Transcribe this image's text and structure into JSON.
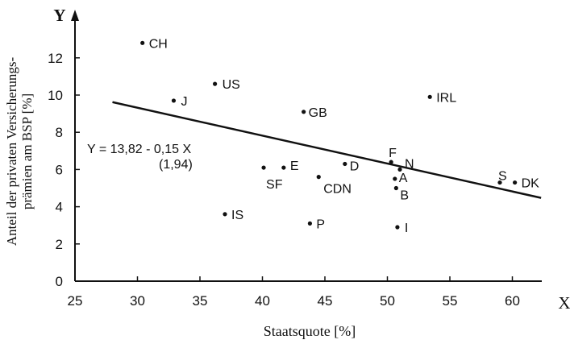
{
  "chart_data": {
    "type": "scatter",
    "xlabel": "Staatsquote [%]",
    "ylabel_lines": [
      "Anteil der privaten Versicherungs-",
      "prämien am BSP [%]"
    ],
    "x_axis_letter": "X",
    "y_axis_letter": "Y",
    "xlim": [
      25,
      63
    ],
    "ylim": [
      0,
      14.2
    ],
    "x_ticks": [
      25,
      30,
      35,
      40,
      45,
      50,
      55,
      60
    ],
    "y_ticks": [
      0,
      2,
      4,
      6,
      8,
      10,
      12
    ],
    "grid": false,
    "points": [
      {
        "label": "CH",
        "x": 30.4,
        "y": 12.8
      },
      {
        "label": "J",
        "x": 32.9,
        "y": 9.7
      },
      {
        "label": "US",
        "x": 36.2,
        "y": 10.6
      },
      {
        "label": "GB",
        "x": 43.3,
        "y": 9.1
      },
      {
        "label": "IRL",
        "x": 53.4,
        "y": 9.9
      },
      {
        "label": "SF",
        "x": 40.1,
        "y": 6.1
      },
      {
        "label": "E",
        "x": 41.7,
        "y": 6.1
      },
      {
        "label": "CDN",
        "x": 44.5,
        "y": 5.6
      },
      {
        "label": "D",
        "x": 46.6,
        "y": 6.3
      },
      {
        "label": "F",
        "x": 50.3,
        "y": 6.4
      },
      {
        "label": "N",
        "x": 51.0,
        "y": 6.0
      },
      {
        "label": "A",
        "x": 50.6,
        "y": 5.5
      },
      {
        "label": "B",
        "x": 50.7,
        "y": 5.0
      },
      {
        "label": "S",
        "x": 59.0,
        "y": 5.3
      },
      {
        "label": "DK",
        "x": 60.2,
        "y": 5.3
      },
      {
        "label": "IS",
        "x": 37.0,
        "y": 3.6
      },
      {
        "label": "P",
        "x": 43.8,
        "y": 3.1
      },
      {
        "label": "I",
        "x": 50.8,
        "y": 2.9
      }
    ],
    "regression": {
      "intercept": 13.82,
      "slope": -0.15,
      "x_from": 28.0,
      "x_to": 62.3,
      "equation": "Y = 13,82 - 0,15 X",
      "t_value": "(1,94)"
    }
  }
}
